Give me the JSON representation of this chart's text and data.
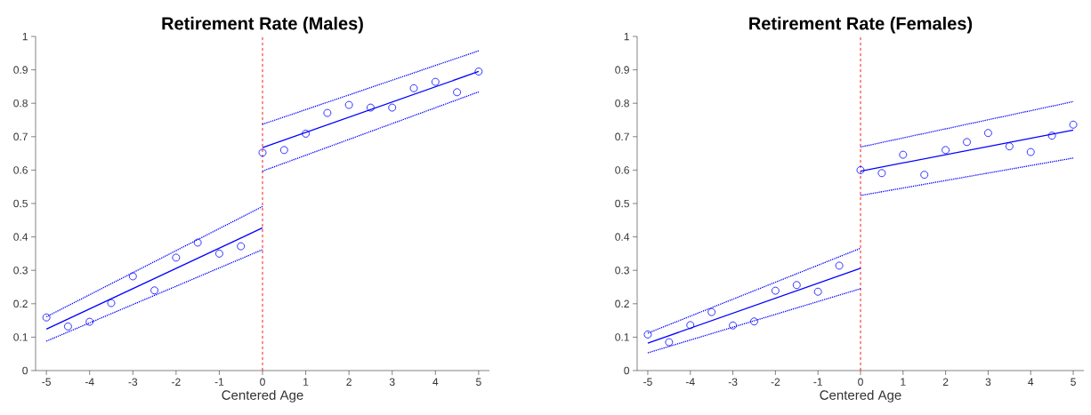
{
  "chart_data": [
    {
      "type": "scatter",
      "title": "Retirement Rate (Males)",
      "xlabel": "Centered Age",
      "xlim": [
        -5.25,
        5.25
      ],
      "xticks": [
        -5,
        -4,
        -3,
        -2,
        -1,
        0,
        1,
        2,
        3,
        4,
        5
      ],
      "ylim": [
        0,
        1
      ],
      "yticks": [
        0,
        0.1,
        0.2,
        0.3,
        0.4,
        0.5,
        0.6,
        0.7,
        0.8,
        0.9,
        1
      ],
      "grid": false,
      "legend": false,
      "ref_lines": [
        {
          "axis": "x",
          "value": 0,
          "color": "#ff0000",
          "line_style": "dashed"
        }
      ],
      "series": [
        {
          "type": "scatter",
          "marker": "circle",
          "color": "#0000ff",
          "x": [
            -5,
            -4.5,
            -4,
            -3.5,
            -3,
            -2.5,
            -2,
            -1.5,
            -1,
            -0.5,
            0,
            0.5,
            1,
            1.5,
            2,
            2.5,
            3,
            3.5,
            4,
            4.5,
            5
          ],
          "values": [
            0.159,
            0.132,
            0.146,
            0.202,
            0.282,
            0.24,
            0.338,
            0.383,
            0.35,
            0.372,
            0.652,
            0.66,
            0.709,
            0.771,
            0.795,
            0.787,
            0.787,
            0.845,
            0.864,
            0.833,
            0.895
          ]
        },
        {
          "type": "line",
          "line_style": "solid",
          "color": "#0000ff",
          "x": [
            -5,
            0
          ],
          "values": [
            0.124,
            0.427
          ]
        },
        {
          "type": "line",
          "line_style": "dotted",
          "color": "#0000ff",
          "x": [
            -5,
            0
          ],
          "values": [
            0.161,
            0.491
          ]
        },
        {
          "type": "line",
          "line_style": "dotted",
          "color": "#0000ff",
          "x": [
            -5,
            0
          ],
          "values": [
            0.088,
            0.362
          ]
        },
        {
          "type": "line",
          "line_style": "solid",
          "color": "#0000ff",
          "x": [
            0,
            5
          ],
          "values": [
            0.667,
            0.895
          ]
        },
        {
          "type": "line",
          "line_style": "dotted",
          "color": "#0000ff",
          "x": [
            0,
            5
          ],
          "values": [
            0.737,
            0.957
          ]
        },
        {
          "type": "line",
          "line_style": "dotted",
          "color": "#0000ff",
          "x": [
            0,
            5
          ],
          "values": [
            0.597,
            0.834
          ]
        }
      ]
    },
    {
      "type": "scatter",
      "title": "Retirement Rate (Females)",
      "xlabel": "Centered Age",
      "xlim": [
        -5.25,
        5.25
      ],
      "xticks": [
        -5,
        -4,
        -3,
        -2,
        -1,
        0,
        1,
        2,
        3,
        4,
        5
      ],
      "ylim": [
        0,
        1
      ],
      "yticks": [
        0,
        0.1,
        0.2,
        0.3,
        0.4,
        0.5,
        0.6,
        0.7,
        0.8,
        0.9,
        1
      ],
      "grid": false,
      "legend": false,
      "ref_lines": [
        {
          "axis": "x",
          "value": 0,
          "color": "#ff0000",
          "line_style": "dashed"
        }
      ],
      "series": [
        {
          "type": "scatter",
          "marker": "circle",
          "color": "#0000ff",
          "x": [
            -5,
            -4.5,
            -4,
            -3.5,
            -3,
            -2.5,
            -2,
            -1.5,
            -1,
            -0.5,
            0,
            0.5,
            1,
            1.5,
            2,
            2.5,
            3,
            3.5,
            4,
            4.5,
            5
          ],
          "values": [
            0.108,
            0.085,
            0.136,
            0.175,
            0.135,
            0.147,
            0.239,
            0.256,
            0.236,
            0.314,
            0.6,
            0.591,
            0.646,
            0.586,
            0.66,
            0.684,
            0.711,
            0.671,
            0.654,
            0.703,
            0.736
          ]
        },
        {
          "type": "line",
          "line_style": "solid",
          "color": "#0000ff",
          "x": [
            -5,
            0
          ],
          "values": [
            0.082,
            0.306
          ]
        },
        {
          "type": "line",
          "line_style": "dotted",
          "color": "#0000ff",
          "x": [
            -5,
            0
          ],
          "values": [
            0.112,
            0.366
          ]
        },
        {
          "type": "line",
          "line_style": "dotted",
          "color": "#0000ff",
          "x": [
            -5,
            0
          ],
          "values": [
            0.053,
            0.245
          ]
        },
        {
          "type": "line",
          "line_style": "solid",
          "color": "#0000ff",
          "x": [
            0,
            5
          ],
          "values": [
            0.597,
            0.72
          ]
        },
        {
          "type": "line",
          "line_style": "dotted",
          "color": "#0000ff",
          "x": [
            0,
            5
          ],
          "values": [
            0.669,
            0.805
          ]
        },
        {
          "type": "line",
          "line_style": "dotted",
          "color": "#0000ff",
          "x": [
            0,
            5
          ],
          "values": [
            0.524,
            0.636
          ]
        }
      ]
    }
  ]
}
